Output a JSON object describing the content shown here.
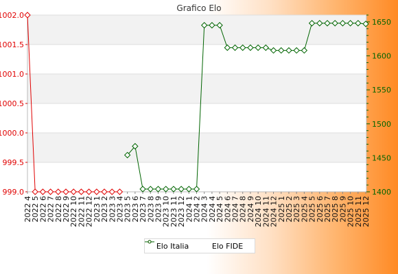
{
  "chart_data": {
    "type": "line",
    "title": "Grafico Elo",
    "colors": {
      "italia": "#e00000",
      "fide": "#006400",
      "grid_band": "#f2f2f2",
      "grid_line": "#dddddd"
    },
    "x": [
      "2022 4",
      "2022 5",
      "2022 6",
      "2022 7",
      "2022 8",
      "2022 9",
      "2022 10",
      "2022 11",
      "2022 12",
      "2023 1",
      "2023 2",
      "2023 3",
      "2023 4",
      "2023 5",
      "2023 6",
      "2023 7",
      "2023 8",
      "2023 9",
      "2023 10",
      "2023 11",
      "2023 12",
      "2024 1",
      "2024 2",
      "2024 3",
      "2024 4",
      "2024 5",
      "2024 6",
      "2024 7",
      "2024 8",
      "2024 9",
      "2024 10",
      "2024 11",
      "2024 12",
      "2025 1",
      "2025 2",
      "2025 3",
      "2025 4",
      "2025 5",
      "2025 6",
      "2025 7",
      "2025 8",
      "2025 9",
      "2025 10",
      "2025 11",
      "2025 12"
    ],
    "left_axis": {
      "ylim": [
        999.0,
        1002.0
      ],
      "ticks": [
        "999.0",
        "999.5",
        "1000.0",
        "1000.5",
        "1001.0",
        "1001.5",
        "1002.0"
      ]
    },
    "right_axis": {
      "ylim": [
        1400,
        1660
      ],
      "ticks": [
        "1400",
        "1450",
        "1500",
        "1550",
        "1600",
        "1650"
      ]
    },
    "series": [
      {
        "name": "Elo Italia",
        "axis": "left",
        "values": [
          1002.0,
          999.0,
          999.0,
          999.0,
          999.0,
          999.0,
          999.0,
          999.0,
          999.0,
          999.0,
          999.0,
          999.0,
          999.0,
          null,
          null,
          null,
          null,
          null,
          null,
          null,
          null,
          null,
          null,
          null,
          null,
          null,
          null,
          null,
          null,
          null,
          null,
          null,
          null,
          null,
          null,
          null,
          null,
          null,
          null,
          null,
          null,
          null,
          null,
          null,
          null
        ]
      },
      {
        "name": "Elo FIDE",
        "axis": "right",
        "values": [
          null,
          null,
          null,
          null,
          null,
          null,
          null,
          null,
          null,
          null,
          null,
          null,
          null,
          1454,
          1467,
          1404,
          1404,
          1404,
          1404,
          1404,
          1404,
          1404,
          1404,
          1645,
          1645,
          1645,
          1612,
          1612,
          1612,
          1612,
          1612,
          1612,
          1608,
          1608,
          1608,
          1608,
          1608,
          1648,
          1648,
          1648,
          1648,
          1648,
          1648,
          1648,
          1647
        ]
      }
    ],
    "legend_position": "bottom-center"
  }
}
